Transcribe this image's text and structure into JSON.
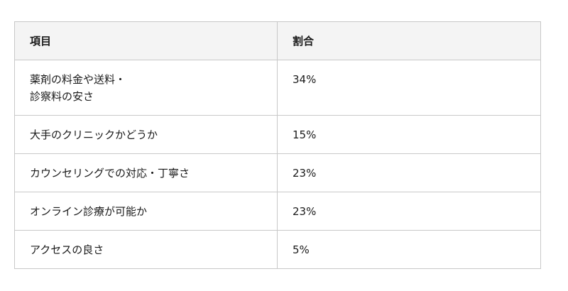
{
  "table": {
    "headers": [
      "項目",
      "割合"
    ],
    "rows": [
      {
        "item": "薬剤の料金や送料・\n診察料の安さ",
        "share": "34%"
      },
      {
        "item": "大手のクリニックかどうか",
        "share": "15%"
      },
      {
        "item": "カウンセリングでの対応・丁寧さ",
        "share": "23%"
      },
      {
        "item": "オンライン診療が可能か",
        "share": "23%"
      },
      {
        "item": "アクセスの良さ",
        "share": "5%"
      }
    ]
  }
}
